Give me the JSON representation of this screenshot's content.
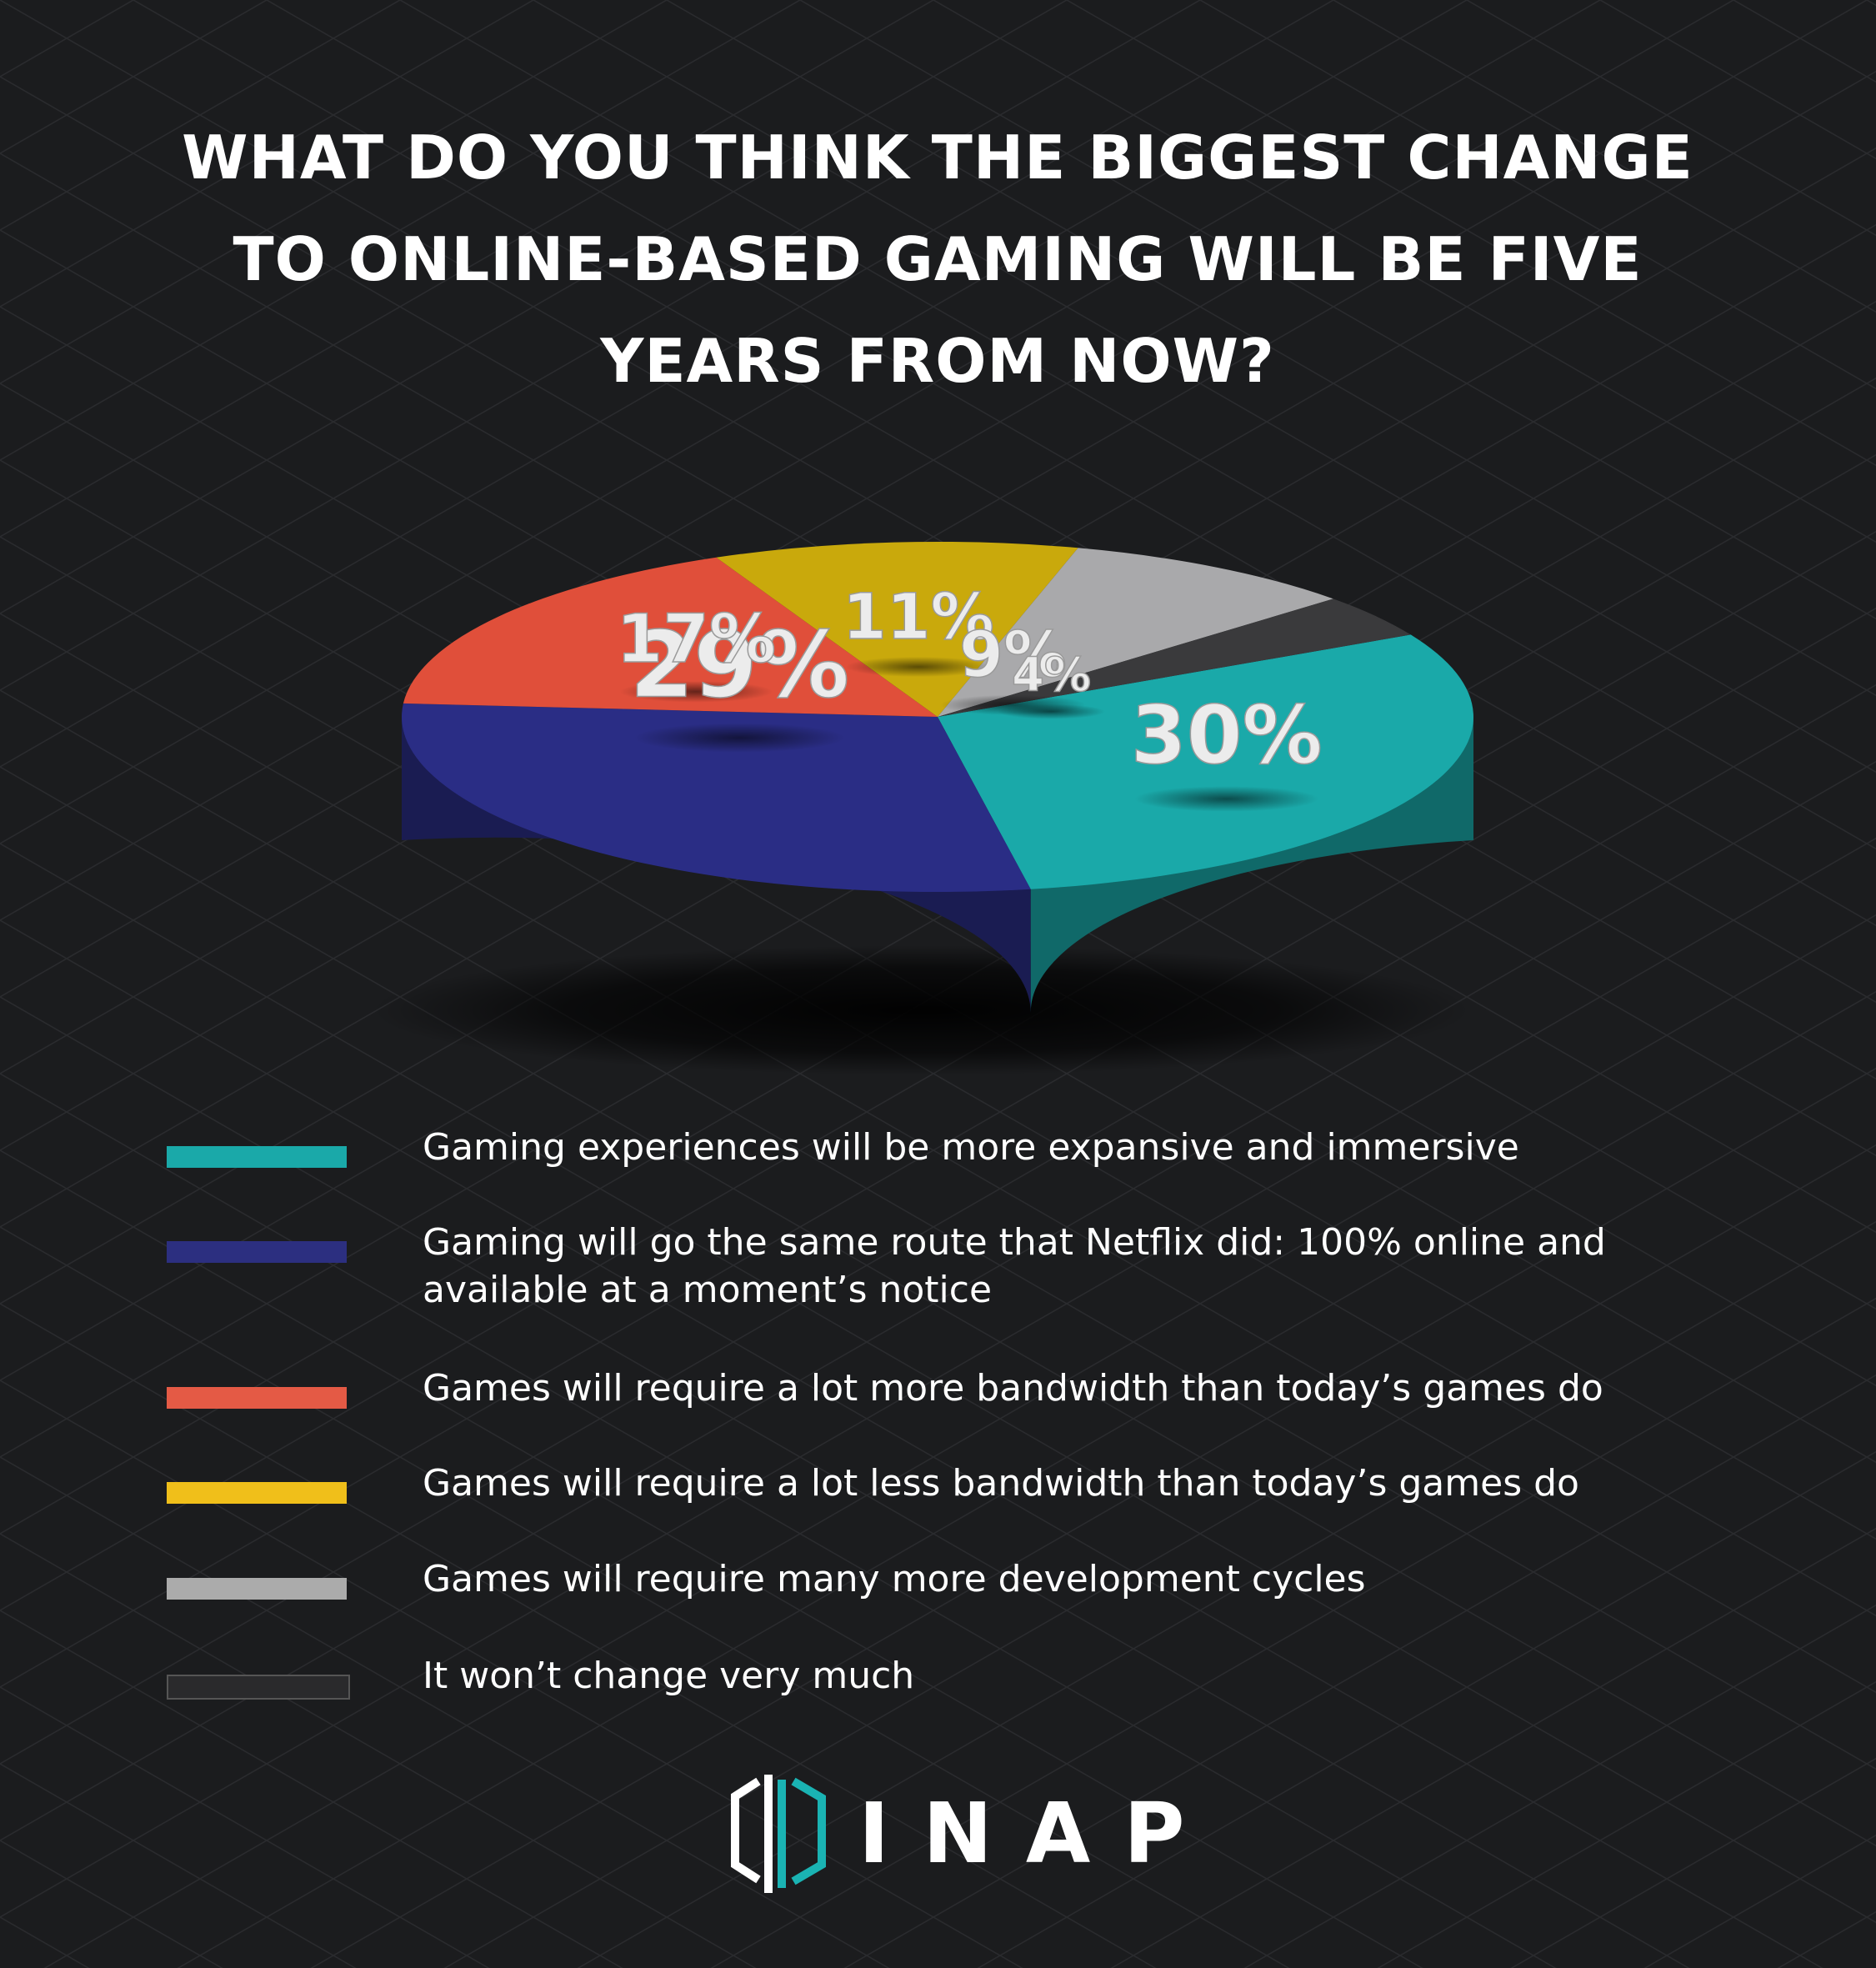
{
  "title_lines": [
    "WHAT DO YOU THINK THE BIGGEST CHANGE",
    "TO ONLINE-BASED GAMING WILL BE FIVE",
    "YEARS FROM NOW?"
  ],
  "chart_data": {
    "type": "pie",
    "style": "3d",
    "title": "WHAT DO YOU THINK THE BIGGEST CHANGE TO ONLINE-BASED GAMING WILL BE FIVE YEARS FROM NOW?",
    "unit": "%",
    "legend_position": "bottom",
    "slices": [
      {
        "label": "Gaming experiences will be more expansive and immersive",
        "value": 30,
        "data_label": "30%",
        "color": "#1aa9a9"
      },
      {
        "label": "Gaming will go the same route that Netflix did: 100% online and available at a moment’s notice",
        "value": 29,
        "data_label": "29%",
        "color": "#2a2d85"
      },
      {
        "label": "Games will require a lot more bandwidth than today’s games do",
        "value": 17,
        "data_label": "17%",
        "color": "#e04f3a"
      },
      {
        "label": "Games will require a lot less bandwidth than today’s games do",
        "value": 11,
        "data_label": "11%",
        "color": "#c9a90c"
      },
      {
        "label": "Games will require many more development cycles",
        "value": 9,
        "data_label": "9%",
        "color": "#a9a9ab"
      },
      {
        "label": "It won’t change very much",
        "value": 4,
        "data_label": "4%",
        "color": "#3a3a3c"
      }
    ]
  },
  "legend": [
    {
      "lines": [
        "Gaming experiences will be more expansive and immersive"
      ],
      "color": "#1aa9a9"
    },
    {
      "lines": [
        "Gaming will go the same route that Netflix did: 100% online and",
        "available at a moment’s notice"
      ],
      "color": "#2c2f80"
    },
    {
      "lines": [
        "Games will require a lot more bandwidth than today’s games do"
      ],
      "color": "#e45a45"
    },
    {
      "lines": [
        "Games will require a lot less bandwidth than today’s games do"
      ],
      "color": "#f0bf1a"
    },
    {
      "lines": [
        "Games will require many more development cycles"
      ],
      "color": "#ababab"
    },
    {
      "lines": [
        "It won’t change very much"
      ],
      "color": "#2a2a2c"
    }
  ],
  "brand": {
    "name": "INAP",
    "logo_icon": "inap-bracket-logo-icon",
    "accent_color": "#1ab3b3"
  }
}
